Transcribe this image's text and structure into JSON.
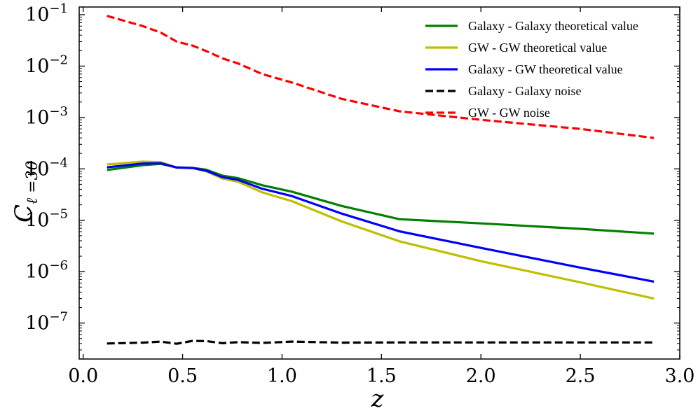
{
  "chart_data": {
    "type": "line",
    "title": "",
    "xlabel": "z",
    "ylabel_main": "C",
    "ylabel_sub": "ℓ =30",
    "xlim": [
      -0.02,
      3.0
    ],
    "ylim_log10": [
      -7.7,
      -0.85
    ],
    "x_ticks": [
      0.0,
      0.5,
      1.0,
      1.5,
      2.0,
      2.5,
      3.0
    ],
    "x_tick_labels": [
      "0.0",
      "0.5",
      "1.0",
      "1.5",
      "2.0",
      "2.5",
      "3.0"
    ],
    "y_tick_exponents": [
      -7,
      -6,
      -5,
      -4,
      -3,
      -2,
      -1
    ],
    "y_tick_base": "10",
    "y_tick_labels": [
      "−7",
      "−6",
      "−5",
      "−4",
      "−3",
      "−2",
      "−1"
    ],
    "legend_position": "top-right",
    "series": [
      {
        "name": "Galaxy - Galaxy theoretical value",
        "color": "#008000",
        "dash": "solid",
        "x": [
          0.12,
          0.3,
          0.39,
          0.47,
          0.55,
          0.62,
          0.7,
          0.78,
          0.9,
          1.05,
          1.3,
          1.59,
          2.0,
          2.5,
          2.87
        ],
        "y": [
          9.5e-05,
          0.000118,
          0.000125,
          0.000107,
          0.000105,
          9.6e-05,
          7.4e-05,
          6.6e-05,
          4.8e-05,
          3.6e-05,
          1.9e-05,
          1.05e-05,
          8.7e-06,
          6.8e-06,
          5.5e-06
        ]
      },
      {
        "name": "GW - GW theoretical value",
        "color": "#bfbf00",
        "dash": "solid",
        "x": [
          0.12,
          0.3,
          0.39,
          0.47,
          0.55,
          0.62,
          0.7,
          0.78,
          0.9,
          1.05,
          1.3,
          1.59,
          2.0,
          2.5,
          2.87
        ],
        "y": [
          0.000122,
          0.000138,
          0.000135,
          0.000106,
          0.000104,
          8.9e-05,
          6.5e-05,
          5.6e-05,
          3.5e-05,
          2.35e-05,
          9.5e-06,
          3.9e-06,
          1.6e-06,
          6.2e-07,
          3e-07
        ]
      },
      {
        "name": "Galaxy - GW theoretical value",
        "color": "#0000ff",
        "dash": "solid",
        "x": [
          0.12,
          0.3,
          0.39,
          0.47,
          0.55,
          0.62,
          0.7,
          0.78,
          0.9,
          1.05,
          1.3,
          1.59,
          2.0,
          2.5,
          2.87
        ],
        "y": [
          0.000107,
          0.000127,
          0.000129,
          0.000106,
          0.000104,
          9.2e-05,
          6.9e-05,
          6.1e-05,
          4.1e-05,
          2.95e-05,
          1.35e-05,
          6.1e-06,
          2.9e-06,
          1.2e-06,
          6.4e-07
        ]
      },
      {
        "name": "Galaxy - Galaxy noise",
        "color": "#000000",
        "dash": "dashed",
        "x": [
          0.12,
          0.3,
          0.39,
          0.47,
          0.55,
          0.62,
          0.7,
          0.78,
          0.9,
          1.05,
          1.3,
          1.59,
          2.0,
          2.5,
          2.87
        ],
        "y": [
          4e-08,
          4.15e-08,
          4.35e-08,
          3.95e-08,
          4.5e-08,
          4.45e-08,
          4.05e-08,
          4.25e-08,
          4.1e-08,
          4.35e-08,
          4.15e-08,
          4.2e-08,
          4.2e-08,
          4.2e-08,
          4.2e-08
        ]
      },
      {
        "name": "GW - GW noise",
        "color": "#ff0000",
        "dash": "dashed",
        "x": [
          0.12,
          0.3,
          0.39,
          0.47,
          0.55,
          0.62,
          0.7,
          0.78,
          0.9,
          1.05,
          1.3,
          1.59,
          2.0,
          2.5,
          2.87
        ],
        "y": [
          0.095,
          0.06,
          0.045,
          0.03,
          0.025,
          0.0195,
          0.0142,
          0.0112,
          0.007,
          0.0048,
          0.0023,
          0.00132,
          0.0009,
          0.0006,
          0.0004
        ]
      }
    ]
  }
}
